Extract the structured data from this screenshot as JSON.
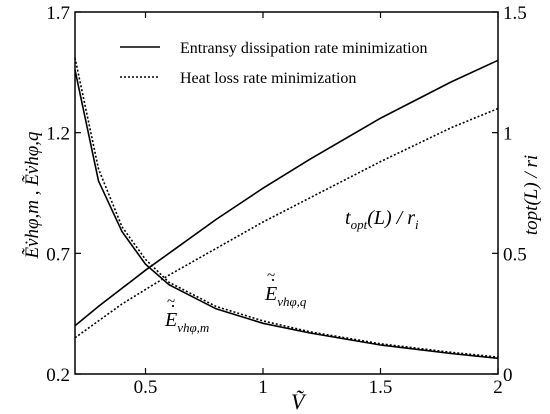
{
  "chart_data": {
    "type": "line",
    "xlabel": "Ṽ",
    "ylabel_left": "Ẽ̇vhφ,m , Ẽ̇vhφ,q",
    "ylabel_right": "topt(L) / ri",
    "xlim": [
      0.2,
      2.0
    ],
    "ylim_left": [
      0.2,
      1.7
    ],
    "ylim_right": [
      0,
      1.5
    ],
    "xticks": [
      "0.5",
      "1",
      "1.5",
      "2"
    ],
    "yticks_left": [
      "0.2",
      "0.7",
      "1.2",
      "1.7"
    ],
    "yticks_right": [
      "0",
      "0.5",
      "1",
      "1.5"
    ],
    "grid": false,
    "legend_placement": "top-left",
    "legend": [
      {
        "label": "Entransy dissipation rate minimization",
        "style": "solid"
      },
      {
        "label": "Heat loss rate minimization",
        "style": "dotted"
      }
    ],
    "series": [
      {
        "name": "Ẽ̇vhφ,m",
        "axis": "left",
        "style": "solid",
        "x": [
          0.2,
          0.3,
          0.4,
          0.5,
          0.6,
          0.8,
          1.0,
          1.2,
          1.5,
          1.8,
          2.0
        ],
        "y": [
          1.46,
          1.0,
          0.79,
          0.655,
          0.57,
          0.47,
          0.41,
          0.37,
          0.32,
          0.285,
          0.265
        ]
      },
      {
        "name": "Ẽ̇vhφ,q",
        "axis": "left",
        "style": "dotted",
        "x": [
          0.2,
          0.3,
          0.4,
          0.5,
          0.6,
          0.8,
          1.0,
          1.2,
          1.5,
          1.8,
          2.0
        ],
        "y": [
          1.51,
          1.05,
          0.81,
          0.675,
          0.58,
          0.48,
          0.42,
          0.375,
          0.325,
          0.29,
          0.27
        ]
      },
      {
        "name": "topt(L)/ri (entransy)",
        "axis": "right",
        "style": "solid",
        "x": [
          0.2,
          0.3,
          0.4,
          0.5,
          0.6,
          0.8,
          1.0,
          1.2,
          1.5,
          1.8,
          2.0
        ],
        "y": [
          0.2,
          0.28,
          0.355,
          0.43,
          0.5,
          0.64,
          0.77,
          0.89,
          1.06,
          1.21,
          1.3
        ]
      },
      {
        "name": "topt(L)/ri (heat loss)",
        "axis": "right",
        "style": "dotted",
        "x": [
          0.2,
          0.3,
          0.4,
          0.5,
          0.6,
          0.8,
          1.0,
          1.2,
          1.5,
          1.8,
          2.0
        ],
        "y": [
          0.15,
          0.22,
          0.29,
          0.35,
          0.41,
          0.52,
          0.63,
          0.73,
          0.88,
          1.02,
          1.1
        ]
      }
    ],
    "annotations": {
      "topt": {
        "main": "t",
        "sub": "opt",
        "rest": "(L) / r",
        "rsub": "i"
      },
      "em": {
        "main": "E",
        "sub": "vhφ,m"
      },
      "eq": {
        "main": "E",
        "sub": "vhφ,q"
      }
    }
  }
}
